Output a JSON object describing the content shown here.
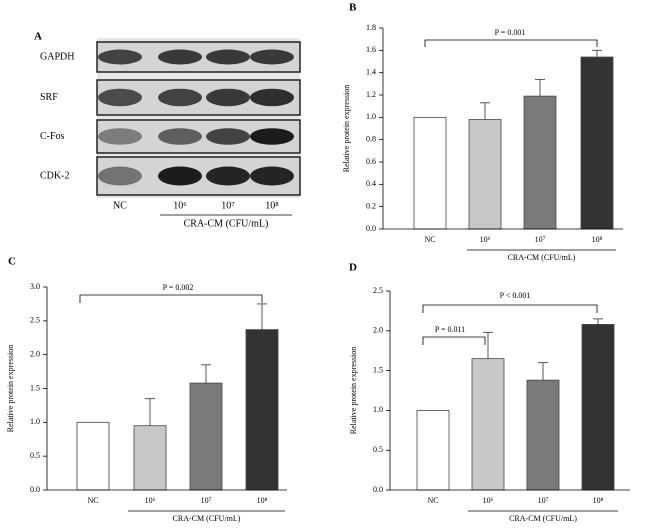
{
  "blot": {
    "panel_label": "A",
    "rows": [
      "GAPDH",
      "SRF",
      "C-Fos",
      "CDK-2"
    ],
    "lanes": [
      "NC",
      "10⁶",
      "10⁷",
      "10⁸"
    ],
    "x_label": "CRA-CM (CFU/mL)"
  },
  "chart_data": [
    {
      "type": "bar",
      "panel_label": "B",
      "y_label": "Relative protein expression",
      "x_label": "CRA-CM (CFU/mL)",
      "categories": [
        "NC",
        "10⁶",
        "10⁷",
        "10⁸"
      ],
      "values": [
        1.0,
        0.98,
        1.19,
        1.54
      ],
      "errors": [
        null,
        0.15,
        0.15,
        0.06
      ],
      "colors": [
        "#ffffff",
        "#c8c8c8",
        "#7a7a7a",
        "#333333"
      ],
      "ylim": [
        0,
        1.8
      ],
      "yticks": [
        {
          "value": 0,
          "label": "0.0"
        },
        0.2,
        0.4,
        0.6,
        0.8,
        {
          "value": 1,
          "label": "1.0"
        },
        1.2,
        1.4,
        1.6,
        1.8
      ],
      "annotations": [
        "P = 0.001"
      ]
    },
    {
      "type": "bar",
      "panel_label": "C",
      "y_label": "Relative protein expression",
      "x_label": "CRA-CM (CFU/mL)",
      "categories": [
        "NC",
        "10⁶",
        "10⁷",
        "10⁸"
      ],
      "values": [
        1.0,
        0.95,
        1.58,
        2.37
      ],
      "errors": [
        null,
        0.4,
        0.27,
        0.38
      ],
      "colors": [
        "#ffffff",
        "#c8c8c8",
        "#7a7a7a",
        "#333333"
      ],
      "ylim": [
        0,
        3
      ],
      "yticks": [
        {
          "value": 0,
          "label": "0.0"
        },
        0.5,
        {
          "value": 1,
          "label": "1.0"
        },
        1.5,
        {
          "value": 2,
          "label": "2.0"
        },
        2.5,
        {
          "value": 3,
          "label": "3.0"
        }
      ],
      "annotations": [
        "P = 0.002"
      ]
    },
    {
      "type": "bar",
      "panel_label": "D",
      "y_label": "Relative protein expression",
      "x_label": "CRA-CM (CFU/mL)",
      "categories": [
        "NC",
        "10⁶",
        "10⁷",
        "10⁸"
      ],
      "values": [
        1.0,
        1.65,
        1.38,
        2.08
      ],
      "errors": [
        null,
        0.33,
        0.22,
        0.07
      ],
      "colors": [
        "#ffffff",
        "#c8c8c8",
        "#7a7a7a",
        "#333333"
      ],
      "ylim": [
        0,
        2.5
      ],
      "yticks": [
        {
          "value": 0,
          "label": "0.0"
        },
        0.5,
        {
          "value": 1,
          "label": "1.0"
        },
        1.5,
        {
          "value": 2,
          "label": "2.0"
        },
        2.5
      ],
      "annotations": [
        "P = 0.011",
        "P < 0.001"
      ]
    }
  ]
}
